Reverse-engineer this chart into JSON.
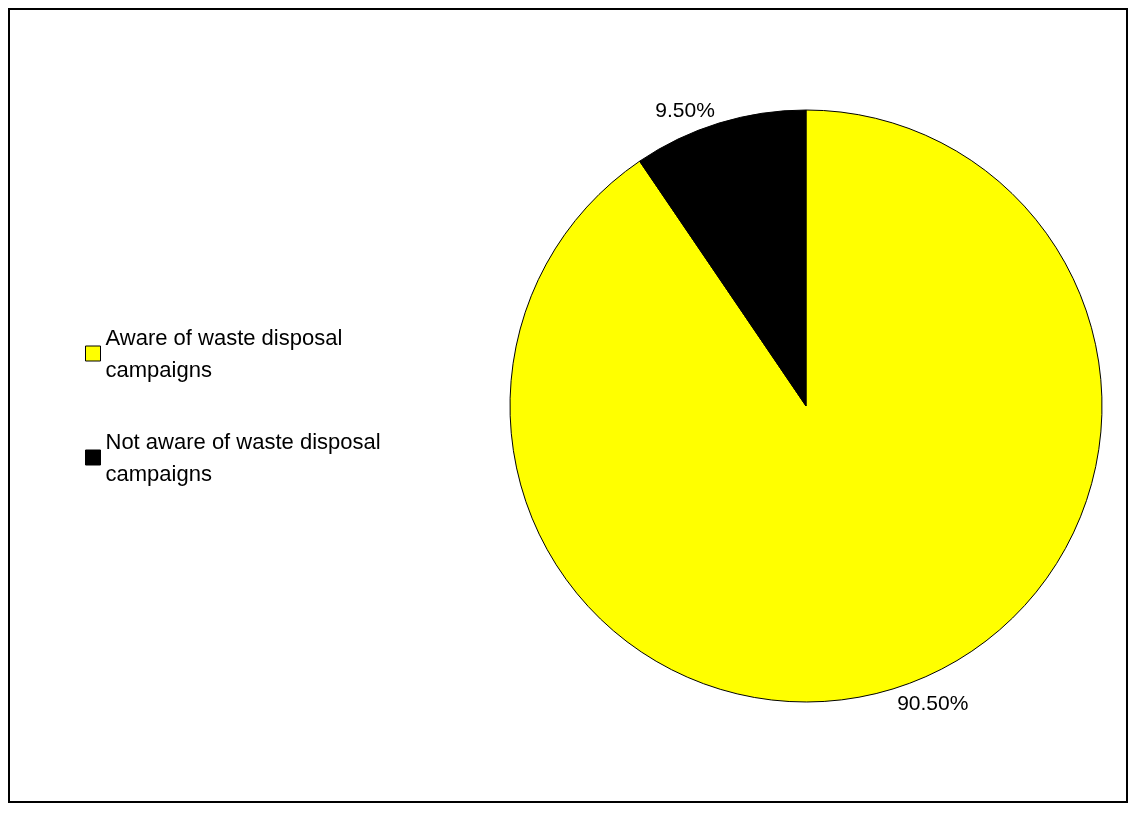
{
  "chart_data": {
    "type": "pie",
    "categories": [
      "Aware of waste disposal campaigns",
      "Not aware of waste disposal campaigns"
    ],
    "values": [
      90.5,
      9.5
    ],
    "colors": [
      "#ffff00",
      "#000000"
    ],
    "value_labels": [
      "90.50%",
      "9.50%"
    ],
    "legend": "left"
  }
}
